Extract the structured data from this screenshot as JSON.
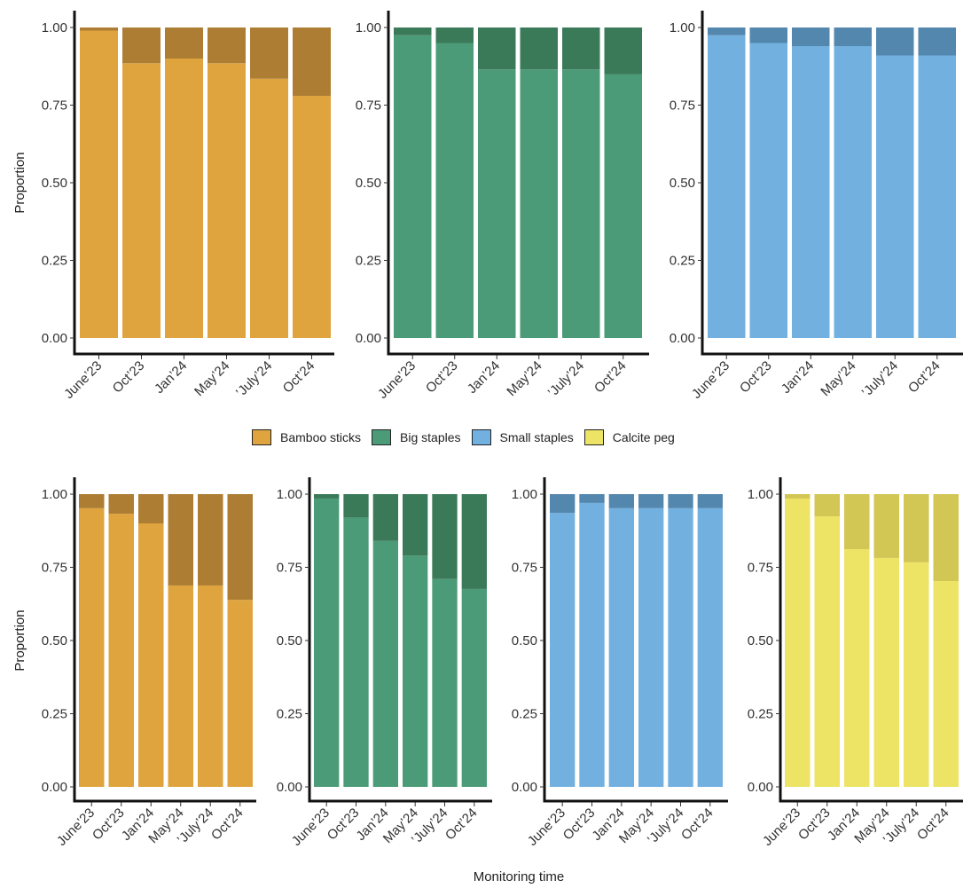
{
  "chart_data": {
    "type": "bar",
    "stacked": true,
    "ylabel": "Proportion",
    "xlabel": "Monitoring time",
    "ylim": [
      0,
      1
    ],
    "yticks": [
      "0.00",
      "0.25",
      "0.50",
      "0.75",
      "1.00"
    ],
    "yticks_values": [
      0,
      0.25,
      0.5,
      0.75,
      1.0
    ],
    "categories": [
      "June’23",
      "Oct’23",
      "Jan’24",
      "May’24",
      "’July’24",
      "Oct’24"
    ],
    "legend": {
      "placement": "center",
      "entries": [
        {
          "label": "Bamboo sticks",
          "color": "#dfa43e"
        },
        {
          "label": "Big staples",
          "color": "#4c9b78"
        },
        {
          "label": "Small staples",
          "color": "#72b0e0"
        },
        {
          "label": "Calcite peg",
          "color": "#ede466"
        }
      ]
    },
    "panels": [
      {
        "row": "top",
        "material": "Bamboo sticks",
        "base_color": "#dfa43e",
        "top_color": "#ad7d33",
        "series": [
          {
            "name": "lower",
            "values": [
              0.99,
              0.885,
              0.9,
              0.885,
              0.835,
              0.78
            ]
          },
          {
            "name": "upper",
            "values": [
              0.01,
              0.115,
              0.1,
              0.115,
              0.165,
              0.22
            ]
          }
        ]
      },
      {
        "row": "top",
        "material": "Big staples",
        "base_color": "#4c9b78",
        "top_color": "#3b7a59",
        "series": [
          {
            "name": "lower",
            "values": [
              0.975,
              0.95,
              0.865,
              0.865,
              0.865,
              0.85
            ]
          },
          {
            "name": "upper",
            "values": [
              0.025,
              0.05,
              0.135,
              0.135,
              0.135,
              0.15
            ]
          }
        ]
      },
      {
        "row": "top",
        "material": "Small staples",
        "base_color": "#72b0e0",
        "top_color": "#5487ae",
        "series": [
          {
            "name": "lower",
            "values": [
              0.975,
              0.95,
              0.94,
              0.94,
              0.91,
              0.91
            ]
          },
          {
            "name": "upper",
            "values": [
              0.025,
              0.05,
              0.06,
              0.06,
              0.09,
              0.09
            ]
          }
        ]
      },
      {
        "row": "bottom",
        "material": "Bamboo sticks",
        "base_color": "#dfa43e",
        "top_color": "#ad7d33",
        "series": [
          {
            "name": "lower",
            "values": [
              0.952,
              0.933,
              0.9,
              0.688,
              0.688,
              0.639
            ]
          },
          {
            "name": "upper",
            "values": [
              0.048,
              0.067,
              0.1,
              0.312,
              0.312,
              0.361
            ]
          }
        ]
      },
      {
        "row": "bottom",
        "material": "Big staples",
        "base_color": "#4c9b78",
        "top_color": "#3b7a59",
        "series": [
          {
            "name": "lower",
            "values": [
              0.985,
              0.92,
              0.84,
              0.79,
              0.71,
              0.676
            ]
          },
          {
            "name": "upper",
            "values": [
              0.015,
              0.08,
              0.16,
              0.21,
              0.29,
              0.324
            ]
          }
        ]
      },
      {
        "row": "bottom",
        "material": "Small staples",
        "base_color": "#72b0e0",
        "top_color": "#5487ae",
        "series": [
          {
            "name": "lower",
            "values": [
              0.936,
              0.97,
              0.952,
              0.952,
              0.952,
              0.952
            ]
          },
          {
            "name": "upper",
            "values": [
              0.064,
              0.03,
              0.048,
              0.048,
              0.048,
              0.048
            ]
          }
        ]
      },
      {
        "row": "bottom",
        "material": "Calcite peg",
        "base_color": "#ede466",
        "top_color": "#d2c655",
        "series": [
          {
            "name": "lower",
            "values": [
              0.985,
              0.924,
              0.812,
              0.782,
              0.767,
              0.703
            ]
          },
          {
            "name": "upper",
            "values": [
              0.015,
              0.076,
              0.188,
              0.218,
              0.233,
              0.297
            ]
          }
        ]
      }
    ]
  }
}
